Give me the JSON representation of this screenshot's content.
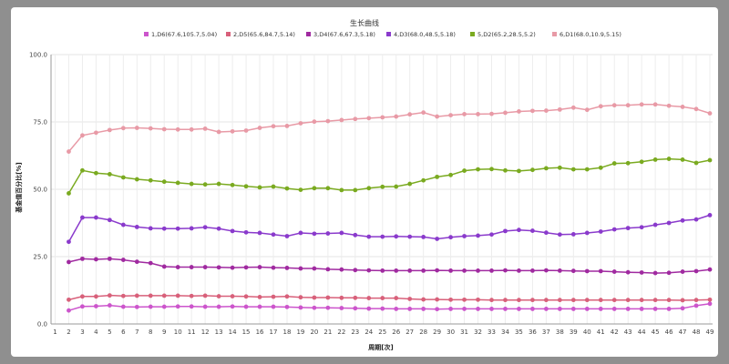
{
  "chart_data": {
    "type": "line",
    "title": "生长曲线",
    "xlabel": "周期[次]",
    "ylabel": "基金值百分比[%]",
    "ylim": [
      0,
      100
    ],
    "yticks": [
      "0.0",
      "25.0",
      "50.0",
      "75.0",
      "100.0"
    ],
    "x": [
      1,
      2,
      3,
      4,
      5,
      6,
      7,
      8,
      9,
      10,
      11,
      12,
      13,
      14,
      15,
      16,
      17,
      18,
      19,
      20,
      21,
      22,
      23,
      24,
      25,
      26,
      27,
      28,
      29,
      30,
      31,
      32,
      33,
      34,
      35,
      36,
      37,
      38,
      39,
      40,
      41,
      42,
      43,
      44,
      45,
      46,
      47,
      48,
      49
    ],
    "grid": true,
    "legend_position": "top",
    "series": [
      {
        "name": "1,D6(67.6,105.7,5.04)",
        "color": "#cc55cc",
        "values": [
          null,
          5.0,
          6.5,
          6.6,
          6.9,
          6.4,
          6.3,
          6.4,
          6.4,
          6.5,
          6.5,
          6.4,
          6.4,
          6.5,
          6.4,
          6.4,
          6.4,
          6.3,
          6.1,
          6.0,
          6.0,
          5.9,
          5.8,
          5.7,
          5.7,
          5.6,
          5.6,
          5.6,
          5.5,
          5.6,
          5.6,
          5.6,
          5.6,
          5.6,
          5.6,
          5.6,
          5.6,
          5.6,
          5.6,
          5.6,
          5.6,
          5.6,
          5.6,
          5.6,
          5.6,
          5.6,
          5.8,
          6.8,
          7.5
        ]
      },
      {
        "name": "2,D5(65.6,84.7,5.14)",
        "color": "#d8607a",
        "values": [
          null,
          9.0,
          10.2,
          10.2,
          10.6,
          10.4,
          10.5,
          10.5,
          10.5,
          10.5,
          10.4,
          10.5,
          10.3,
          10.3,
          10.2,
          10.0,
          10.1,
          10.2,
          9.9,
          9.8,
          9.8,
          9.7,
          9.7,
          9.6,
          9.6,
          9.6,
          9.3,
          9.1,
          9.1,
          9.0,
          9.0,
          9.0,
          8.9,
          8.9,
          8.9,
          8.9,
          8.9,
          8.9,
          8.9,
          8.9,
          8.9,
          8.9,
          8.9,
          8.9,
          8.9,
          8.9,
          8.8,
          8.9,
          9.0
        ]
      },
      {
        "name": "3,D4(67.6,67.3,5.18)",
        "color": "#a02aa0",
        "values": [
          null,
          23.0,
          24.2,
          24.0,
          24.2,
          23.8,
          23.1,
          22.6,
          21.3,
          21.1,
          21.1,
          21.1,
          21.0,
          20.9,
          21.0,
          21.1,
          20.9,
          20.8,
          20.6,
          20.6,
          20.3,
          20.2,
          20.0,
          19.9,
          19.8,
          19.8,
          19.8,
          19.8,
          19.9,
          19.8,
          19.8,
          19.8,
          19.8,
          19.9,
          19.8,
          19.8,
          19.9,
          19.8,
          19.7,
          19.6,
          19.6,
          19.4,
          19.2,
          19.1,
          18.9,
          19.0,
          19.4,
          19.6,
          20.2
        ]
      },
      {
        "name": "4,D3(68.0,48.5,5.18)",
        "color": "#8a3acc",
        "values": [
          null,
          30.5,
          39.5,
          39.5,
          38.6,
          36.8,
          36.0,
          35.5,
          35.4,
          35.4,
          35.5,
          35.9,
          35.4,
          34.5,
          34.0,
          33.8,
          33.2,
          32.6,
          33.8,
          33.5,
          33.6,
          33.8,
          33.0,
          32.4,
          32.4,
          32.5,
          32.4,
          32.3,
          31.6,
          32.2,
          32.6,
          32.8,
          33.2,
          34.5,
          34.9,
          34.6,
          33.9,
          33.2,
          33.3,
          33.8,
          34.3,
          35.1,
          35.6,
          35.9,
          36.8,
          37.5,
          38.4,
          38.8,
          40.4
        ]
      },
      {
        "name": "5,D2(65.2,28.5,5.2)",
        "color": "#7aaa20",
        "values": [
          null,
          48.5,
          57.0,
          56.0,
          55.6,
          54.4,
          53.7,
          53.3,
          52.8,
          52.4,
          52.0,
          51.8,
          52.0,
          51.6,
          51.1,
          50.7,
          51.0,
          50.3,
          49.8,
          50.4,
          50.4,
          49.7,
          49.7,
          50.4,
          50.9,
          51.0,
          52.0,
          53.3,
          54.6,
          55.3,
          56.9,
          57.4,
          57.5,
          57.0,
          56.8,
          57.2,
          57.8,
          58.0,
          57.4,
          57.4,
          58.0,
          59.6,
          59.7,
          60.2,
          61.0,
          61.3,
          61.0,
          59.8,
          60.8
        ]
      },
      {
        "name": "6,D1(68.0,10.9,5.15)",
        "color": "#e89aa6",
        "values": [
          null,
          64.0,
          70.0,
          71.0,
          72.0,
          72.7,
          72.8,
          72.6,
          72.3,
          72.2,
          72.2,
          72.5,
          71.3,
          71.5,
          71.8,
          72.8,
          73.4,
          73.5,
          74.5,
          75.1,
          75.3,
          75.7,
          76.1,
          76.4,
          76.7,
          77.0,
          77.8,
          78.5,
          77.0,
          77.5,
          77.9,
          77.9,
          78.0,
          78.4,
          78.9,
          79.1,
          79.2,
          79.6,
          80.3,
          79.5,
          80.8,
          81.2,
          81.2,
          81.5,
          81.5,
          81.0,
          80.6,
          79.8,
          78.2
        ]
      }
    ]
  }
}
